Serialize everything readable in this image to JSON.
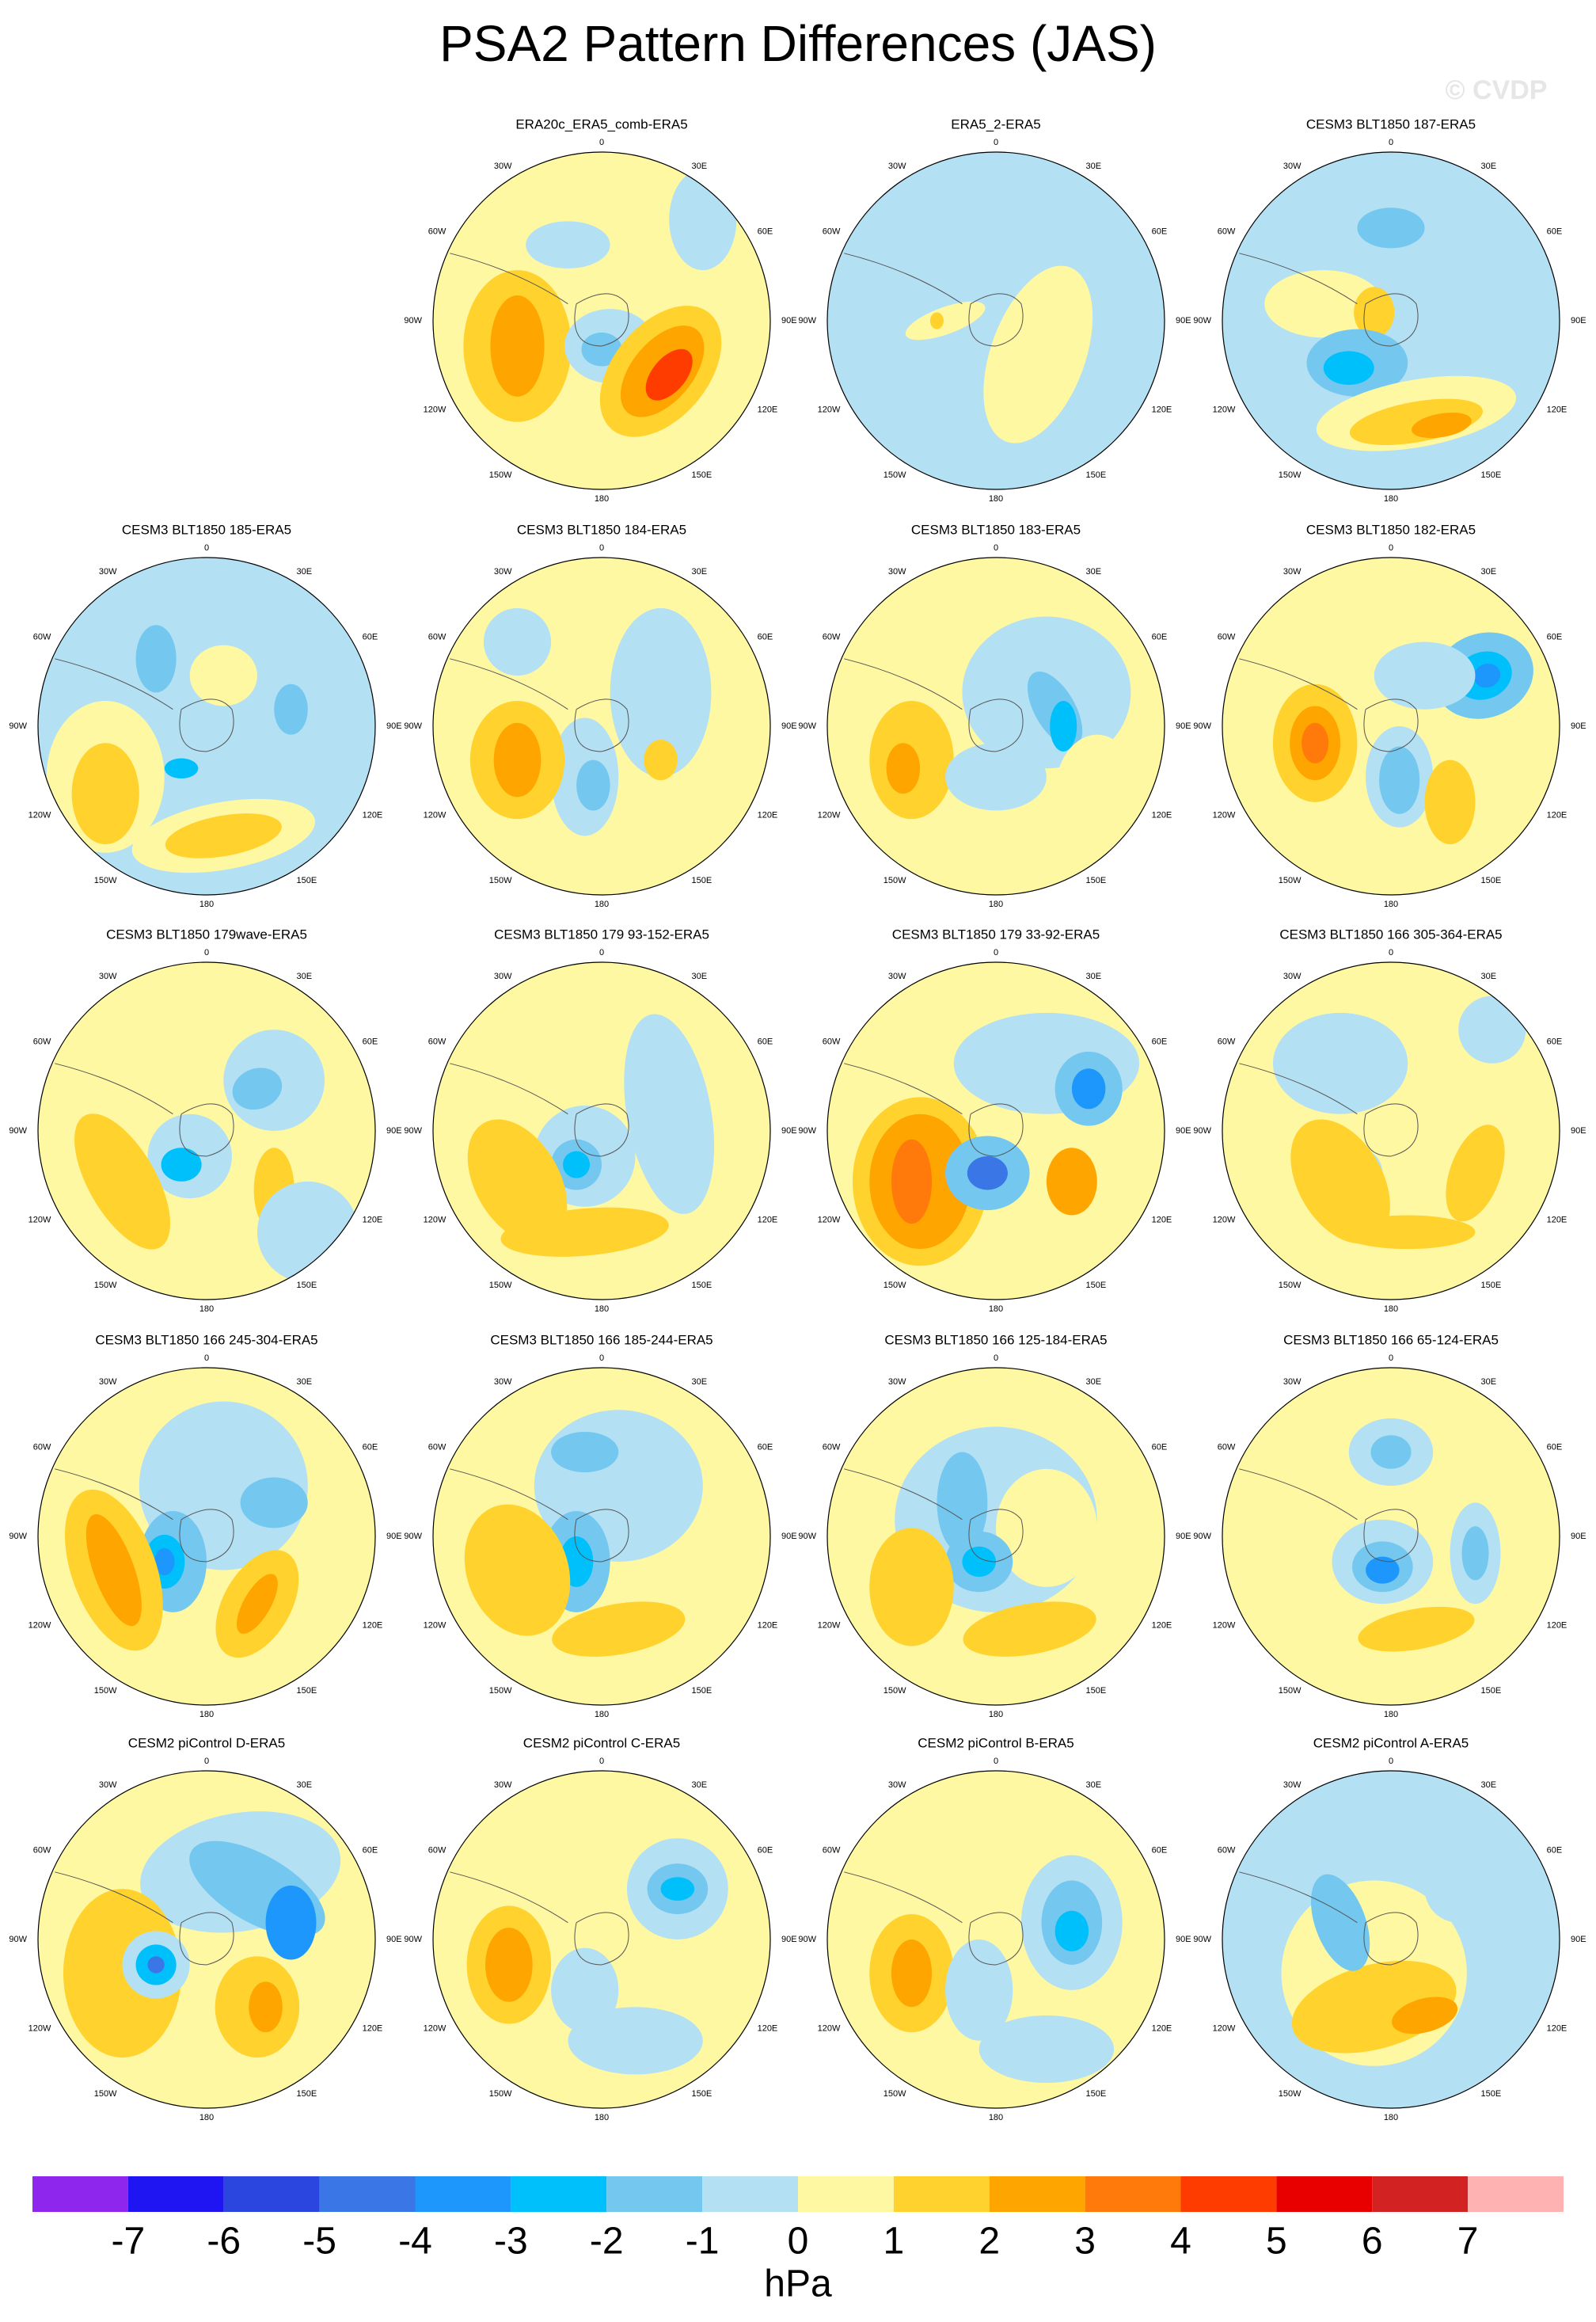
{
  "header": {
    "title": "PSA2 Pattern Differences (JAS)",
    "watermark": "© CVDP"
  },
  "panels": [
    {
      "title": "ERA20c_ERA5_comb-ERA5"
    },
    {
      "title": "ERA5_2-ERA5"
    },
    {
      "title": "CESM3 BLT1850 187-ERA5"
    },
    {
      "title": "CESM3 BLT1850 185-ERA5"
    },
    {
      "title": "CESM3 BLT1850 184-ERA5"
    },
    {
      "title": "CESM3 BLT1850 183-ERA5"
    },
    {
      "title": "CESM3 BLT1850 182-ERA5"
    },
    {
      "title": "CESM3 BLT1850 179wave-ERA5"
    },
    {
      "title": "CESM3 BLT1850 179 93-152-ERA5"
    },
    {
      "title": "CESM3 BLT1850 179 33-92-ERA5"
    },
    {
      "title": "CESM3 BLT1850 166 305-364-ERA5"
    },
    {
      "title": "CESM3 BLT1850 166 245-304-ERA5"
    },
    {
      "title": "CESM3 BLT1850 166 185-244-ERA5"
    },
    {
      "title": "CESM3 BLT1850 166 125-184-ERA5"
    },
    {
      "title": "CESM3 BLT1850 166 65-124-ERA5"
    },
    {
      "title": "CESM2 piControl D-ERA5"
    },
    {
      "title": "CESM2 piControl C-ERA5"
    },
    {
      "title": "CESM2 piControl B-ERA5"
    },
    {
      "title": "CESM2 piControl A-ERA5"
    }
  ],
  "lon_labels": [
    "0",
    "30E",
    "60E",
    "90E",
    "120E",
    "150E",
    "180",
    "150W",
    "120W",
    "90W",
    "60W",
    "30W"
  ],
  "colorbar": {
    "colors": [
      "#8f26ee",
      "#1f14f2",
      "#2b45df",
      "#3a76e6",
      "#1d97fb",
      "#00c0fb",
      "#74c8f0",
      "#b4e0f4",
      "#fff8a3",
      "#ffd22e",
      "#ffa500",
      "#ff7a0a",
      "#ff3c00",
      "#e80000",
      "#d22222",
      "#ffb2b2"
    ],
    "ticks": [
      -7,
      -6,
      -5,
      -4,
      -3,
      -2,
      -1,
      0,
      1,
      2,
      3,
      4,
      5,
      6,
      7
    ],
    "label": "hPa"
  }
}
